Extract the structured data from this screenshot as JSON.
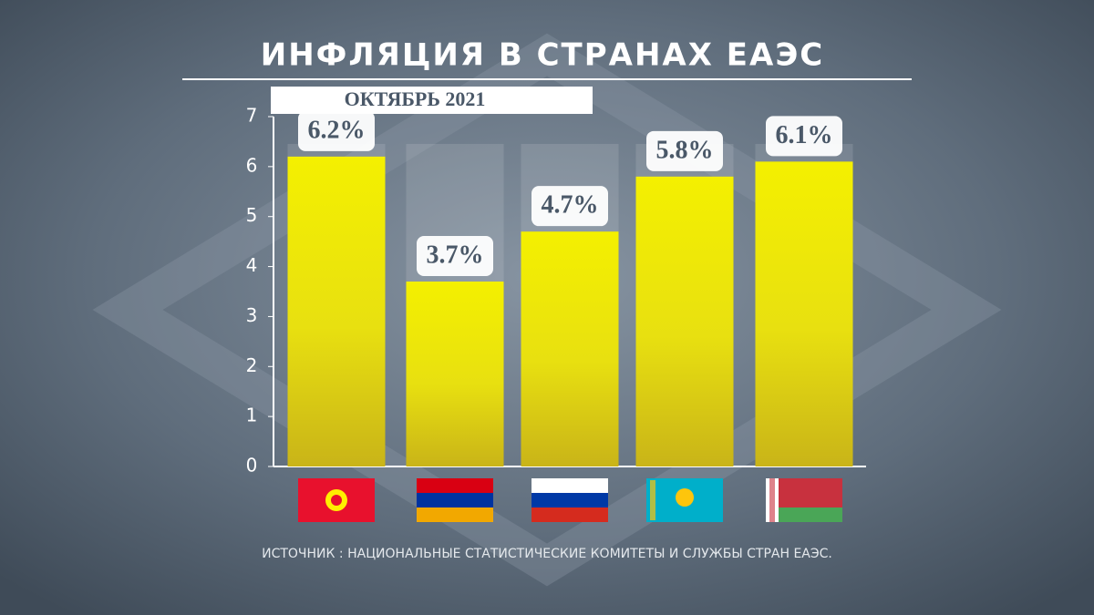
{
  "chart_data": {
    "type": "bar",
    "title": "ИНФЛЯЦИЯ В СТРАНАХ ЕАЭС",
    "subtitle": "ОКТЯБРЬ 2021",
    "source": "ИСТОЧНИК : НАЦИОНАЛЬНЫЕ СТАТИСТИЧЕСКИЕ КОМИТЕТЫ И СЛУЖБЫ СТРАН ЕАЭС.",
    "categories": [
      null,
      null,
      null,
      null,
      null
    ],
    "values": [
      6.2,
      3.7,
      4.7,
      5.8,
      6.1
    ],
    "value_labels": [
      "6.2%",
      "3.7%",
      "4.7%",
      "5.8%",
      "6.1%"
    ],
    "color": "#f0ec10",
    "ylim": [
      0,
      7
    ],
    "yticks": [
      0,
      1,
      2,
      3,
      4,
      5,
      6,
      7
    ]
  }
}
